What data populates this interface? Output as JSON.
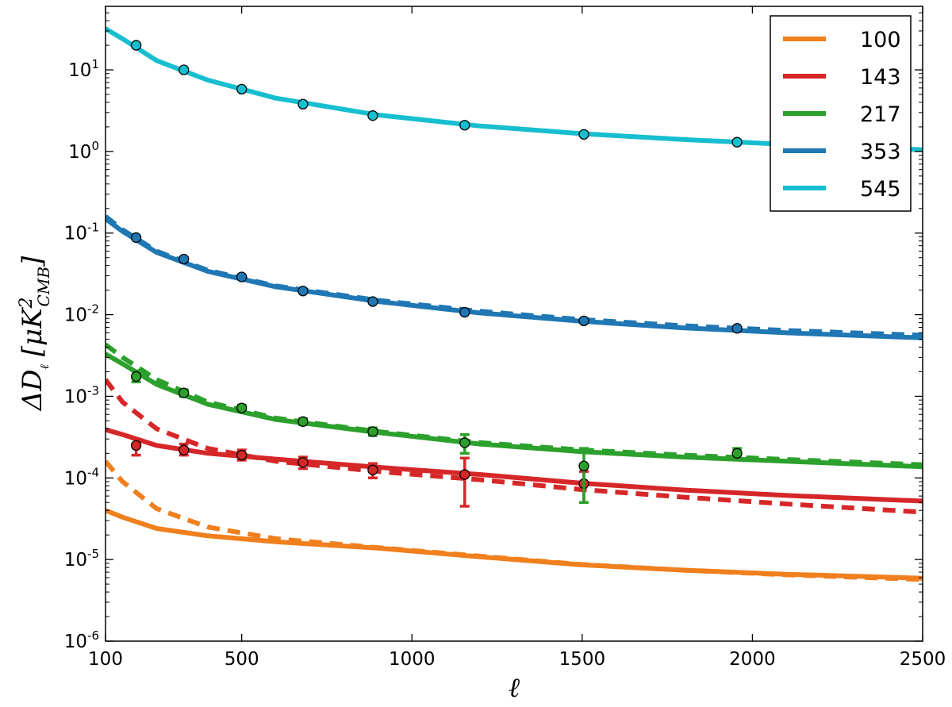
{
  "chart_data": {
    "type": "line",
    "title": "",
    "xlabel": "ℓ",
    "ylabel": "ΔD_ℓ [μK²_CMB]",
    "xlim": [
      100,
      2500
    ],
    "ylim": [
      1e-06,
      60
    ],
    "yscale": "log",
    "grid": false,
    "legend_position": "top-right",
    "x_ticks": [
      100,
      500,
      1000,
      1500,
      2000,
      2500
    ],
    "y_ticks": [
      {
        "base": "10",
        "exp": "-6",
        "value": 1e-06
      },
      {
        "base": "10",
        "exp": "-5",
        "value": 1e-05
      },
      {
        "base": "10",
        "exp": "-4",
        "value": 0.0001
      },
      {
        "base": "10",
        "exp": "-3",
        "value": 0.001
      },
      {
        "base": "10",
        "exp": "-2",
        "value": 0.01
      },
      {
        "base": "10",
        "exp": "-1",
        "value": 0.1
      },
      {
        "base": "10",
        "exp": "0",
        "value": 1
      },
      {
        "base": "10",
        "exp": "1",
        "value": 10
      }
    ],
    "series": [
      {
        "name": "100",
        "color": "#f07f1e",
        "solid": {
          "x": [
            100,
            150,
            250,
            400,
            600,
            900,
            1200,
            1500,
            1800,
            2100,
            2500
          ],
          "y": [
            4e-05,
            3.3e-05,
            2.4e-05,
            1.95e-05,
            1.65e-05,
            1.38e-05,
            1.08e-05,
            8.6e-06,
            7.4e-06,
            6.6e-06,
            5.9e-06
          ]
        },
        "dashed": {
          "x": [
            100,
            150,
            250,
            400,
            600,
            900,
            1200,
            1500,
            1800,
            2100,
            2500
          ],
          "y": [
            0.00016,
            9e-05,
            4.2e-05,
            2.5e-05,
            1.8e-05,
            1.4e-05,
            1.1e-05,
            8.7e-06,
            7.4e-06,
            6.5e-06,
            5.7e-06
          ]
        },
        "points": []
      },
      {
        "name": "143",
        "color": "#d62728",
        "solid": {
          "x": [
            100,
            150,
            250,
            400,
            600,
            900,
            1200,
            1500,
            1800,
            2100,
            2500
          ],
          "y": [
            0.00039,
            0.00034,
            0.00025,
            0.0002,
            0.00017,
            0.000135,
            0.00011,
            8.6e-05,
            7.1e-05,
            6.1e-05,
            5.2e-05
          ]
        },
        "dashed": {
          "x": [
            100,
            150,
            250,
            400,
            600,
            900,
            1200,
            1500,
            1800,
            2100,
            2500
          ],
          "y": [
            0.0016,
            0.00085,
            0.0004,
            0.00023,
            0.00016,
            0.00012,
            9.5e-05,
            7.2e-05,
            5.8e-05,
            4.8e-05,
            3.8e-05
          ]
        },
        "points": [
          {
            "x": 190,
            "y": 0.00025,
            "lo": 0.00019,
            "hi": 0.0003
          },
          {
            "x": 330,
            "y": 0.00022,
            "lo": 0.00019,
            "hi": 0.00026
          },
          {
            "x": 500,
            "y": 0.00019,
            "lo": 0.000165,
            "hi": 0.00022
          },
          {
            "x": 680,
            "y": 0.000155,
            "lo": 0.00013,
            "hi": 0.00018
          },
          {
            "x": 885,
            "y": 0.000125,
            "lo": 0.0001,
            "hi": 0.00015
          },
          {
            "x": 1155,
            "y": 0.00011,
            "lo": 4.5e-05,
            "hi": 0.000175
          },
          {
            "x": 1505,
            "y": 8.5e-05,
            "lo": 5e-05,
            "hi": 0.00012
          }
        ]
      },
      {
        "name": "217",
        "color": "#2ca02c",
        "solid": {
          "x": [
            100,
            150,
            250,
            400,
            600,
            900,
            1200,
            1500,
            1800,
            2100,
            2500
          ],
          "y": [
            0.0033,
            0.0025,
            0.0014,
            0.0008,
            0.00052,
            0.00036,
            0.00026,
            0.00021,
            0.00018,
            0.00016,
            0.000137
          ]
        },
        "dashed": {
          "x": [
            100,
            150,
            250,
            400,
            600,
            900,
            1200,
            1500,
            1800,
            2100,
            2500
          ],
          "y": [
            0.0043,
            0.003,
            0.0016,
            0.00085,
            0.00054,
            0.00037,
            0.00027,
            0.00022,
            0.00019,
            0.000168,
            0.000145
          ]
        },
        "points": [
          {
            "x": 190,
            "y": 0.00175,
            "lo": 0.0015,
            "hi": 0.00205
          },
          {
            "x": 330,
            "y": 0.0011,
            "lo": 0.001,
            "hi": 0.0012
          },
          {
            "x": 500,
            "y": 0.00072,
            "lo": 0.00066,
            "hi": 0.00078
          },
          {
            "x": 680,
            "y": 0.00049,
            "lo": 0.00045,
            "hi": 0.00053
          },
          {
            "x": 885,
            "y": 0.00037,
            "lo": 0.00033,
            "hi": 0.00041
          },
          {
            "x": 1155,
            "y": 0.00027,
            "lo": 0.0002,
            "hi": 0.00034
          },
          {
            "x": 1505,
            "y": 0.00014,
            "lo": 5e-05,
            "hi": 0.00023
          },
          {
            "x": 1955,
            "y": 0.0002,
            "lo": 0.000175,
            "hi": 0.00023
          }
        ]
      },
      {
        "name": "353",
        "color": "#1f77b4",
        "solid": {
          "x": [
            100,
            150,
            250,
            400,
            600,
            900,
            1200,
            1500,
            1800,
            2100,
            2500
          ],
          "y": [
            0.15,
            0.105,
            0.058,
            0.034,
            0.022,
            0.0145,
            0.0105,
            0.0083,
            0.0069,
            0.006,
            0.0052
          ]
        },
        "dashed": {
          "x": [
            100,
            150,
            250,
            400,
            600,
            900,
            1200,
            1500,
            1800,
            2100,
            2500
          ],
          "y": [
            0.16,
            0.11,
            0.06,
            0.035,
            0.0225,
            0.015,
            0.011,
            0.0087,
            0.0073,
            0.0064,
            0.0056
          ]
        },
        "points": [
          {
            "x": 190,
            "y": 0.088,
            "lo": 0.085,
            "hi": 0.091
          },
          {
            "x": 330,
            "y": 0.048,
            "lo": 0.046,
            "hi": 0.05
          },
          {
            "x": 500,
            "y": 0.029,
            "lo": 0.028,
            "hi": 0.03
          },
          {
            "x": 680,
            "y": 0.0195,
            "lo": 0.019,
            "hi": 0.02
          },
          {
            "x": 885,
            "y": 0.0145,
            "lo": 0.014,
            "hi": 0.015
          },
          {
            "x": 1155,
            "y": 0.0107,
            "lo": 0.0104,
            "hi": 0.011
          },
          {
            "x": 1505,
            "y": 0.0084,
            "lo": 0.0082,
            "hi": 0.0086
          },
          {
            "x": 1955,
            "y": 0.0068,
            "lo": 0.0066,
            "hi": 0.007
          }
        ]
      },
      {
        "name": "545",
        "color": "#17becf",
        "solid": {
          "x": [
            100,
            150,
            250,
            400,
            600,
            900,
            1200,
            1500,
            1800,
            2100,
            2500
          ],
          "y": [
            32,
            24,
            13,
            7.5,
            4.5,
            2.8,
            2.05,
            1.65,
            1.4,
            1.22,
            1.05
          ]
        },
        "dashed": {
          "x": [],
          "y": []
        },
        "points": [
          {
            "x": 190,
            "y": 20,
            "lo": 19.5,
            "hi": 20.5
          },
          {
            "x": 330,
            "y": 10,
            "lo": 9.8,
            "hi": 10.2
          },
          {
            "x": 500,
            "y": 5.8,
            "lo": 5.7,
            "hi": 5.9
          },
          {
            "x": 680,
            "y": 3.8,
            "lo": 3.75,
            "hi": 3.85
          },
          {
            "x": 885,
            "y": 2.75,
            "lo": 2.7,
            "hi": 2.8
          },
          {
            "x": 1155,
            "y": 2.1,
            "lo": 2.07,
            "hi": 2.13
          },
          {
            "x": 1505,
            "y": 1.62,
            "lo": 1.6,
            "hi": 1.64
          },
          {
            "x": 1955,
            "y": 1.3,
            "lo": 1.28,
            "hi": 1.32
          }
        ]
      }
    ]
  }
}
